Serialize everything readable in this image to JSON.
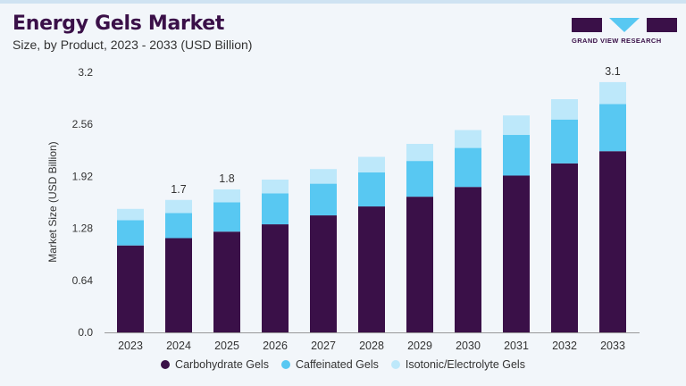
{
  "header": {
    "title": "Energy Gels Market",
    "subtitle": "Size, by Product, 2023 - 2033 (USD Billion)",
    "logo_text": "GRAND VIEW RESEARCH"
  },
  "colors": {
    "Carbohydrate Gels": "#3a1048",
    "Caffeinated Gels": "#58c8f2",
    "Isotonic/Electrolyte Gels": "#bde8fa",
    "background": "#f2f6fa"
  },
  "chart_data": {
    "type": "bar",
    "stacked": true,
    "title": "Energy Gels Market",
    "subtitle": "Size, by Product, 2023 - 2033 (USD Billion)",
    "xlabel": "",
    "ylabel": "Market Size (USD Billion)",
    "ylim": [
      0,
      3.2
    ],
    "yticks": [
      "0.0",
      "0.64",
      "1.28",
      "1.92",
      "2.56",
      "3.2"
    ],
    "grid": false,
    "legend_placement": "bottom",
    "categories": [
      "2023",
      "2024",
      "2025",
      "2026",
      "2027",
      "2028",
      "2029",
      "2030",
      "2031",
      "2032",
      "2033"
    ],
    "series": [
      {
        "name": "Carbohydrate Gels",
        "values": [
          1.07,
          1.16,
          1.24,
          1.33,
          1.44,
          1.55,
          1.67,
          1.79,
          1.93,
          2.08,
          2.23
        ]
      },
      {
        "name": "Caffeinated Gels",
        "values": [
          0.31,
          0.31,
          0.36,
          0.38,
          0.39,
          0.42,
          0.44,
          0.48,
          0.5,
          0.54,
          0.58
        ]
      },
      {
        "name": "Isotonic/Electrolyte Gels",
        "values": [
          0.14,
          0.16,
          0.16,
          0.17,
          0.18,
          0.19,
          0.21,
          0.22,
          0.24,
          0.25,
          0.27
        ]
      }
    ],
    "annotations": [
      {
        "category": "2024",
        "text": "1.7"
      },
      {
        "category": "2025",
        "text": "1.8"
      },
      {
        "category": "2033",
        "text": "3.1"
      }
    ]
  }
}
